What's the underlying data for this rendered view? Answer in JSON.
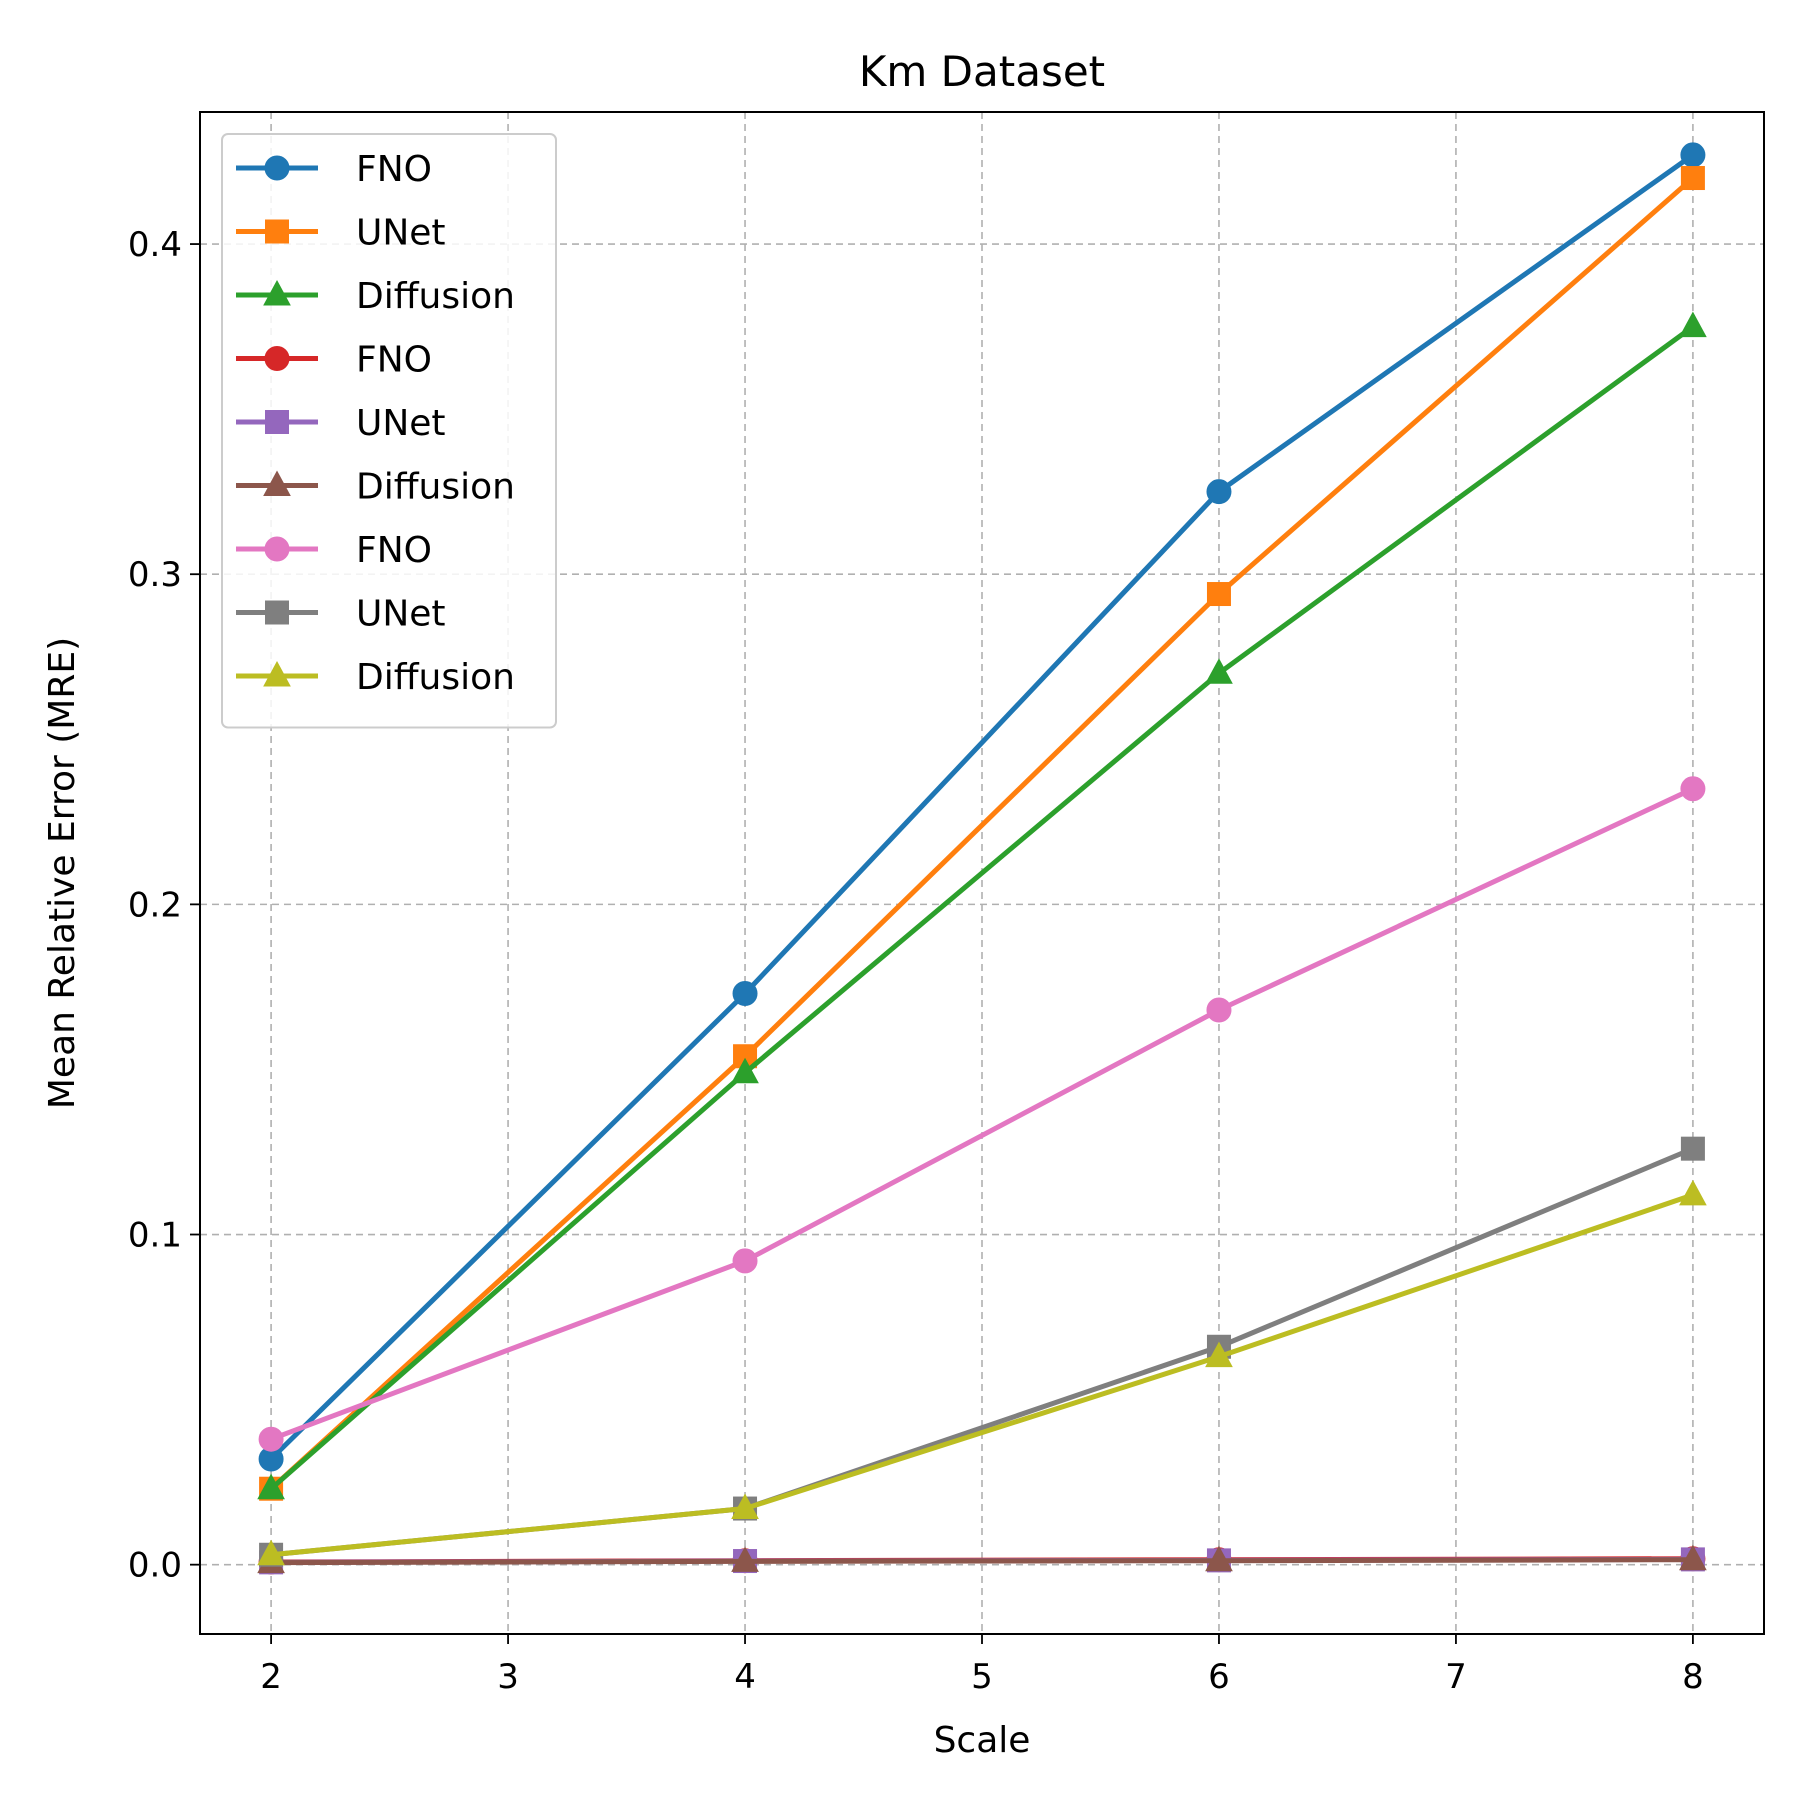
{
  "chart_data": {
    "type": "line",
    "title": "Km Dataset",
    "xlabel": "Scale",
    "ylabel": "Mean Relative Error (MRE)",
    "x": [
      2,
      4,
      6,
      8
    ],
    "xlim": [
      1.7,
      8.3
    ],
    "ylim": [
      -0.021,
      0.44
    ],
    "xticks": [
      2,
      3,
      4,
      5,
      6,
      7,
      8
    ],
    "xtick_labels": [
      "2",
      "3",
      "4",
      "5",
      "6",
      "7",
      "8"
    ],
    "yticks": [
      0.0,
      0.1,
      0.2,
      0.3,
      0.4
    ],
    "ytick_labels": [
      "0.0",
      "0.1",
      "0.2",
      "0.3",
      "0.4"
    ],
    "grid": true,
    "legend_position": "upper-left",
    "series": [
      {
        "name": "FNO",
        "color": "#1f77b4",
        "marker": "circle",
        "values": [
          0.032,
          0.173,
          0.325,
          0.427
        ]
      },
      {
        "name": "UNet",
        "color": "#ff7f0e",
        "marker": "square",
        "values": [
          0.023,
          0.154,
          0.294,
          0.42
        ]
      },
      {
        "name": "Diffusion",
        "color": "#2ca02c",
        "marker": "triangle",
        "values": [
          0.023,
          0.149,
          0.27,
          0.375
        ]
      },
      {
        "name": "FNO",
        "color": "#d62728",
        "marker": "circle",
        "values": [
          0.0008,
          0.0012,
          0.0015,
          0.0018
        ]
      },
      {
        "name": "UNet",
        "color": "#9467bd",
        "marker": "square",
        "values": [
          0.0007,
          0.0011,
          0.0013,
          0.0016
        ]
      },
      {
        "name": "Diffusion",
        "color": "#8c564b",
        "marker": "triangle",
        "values": [
          0.0006,
          0.001,
          0.0012,
          0.0015
        ]
      },
      {
        "name": "FNO",
        "color": "#e377c2",
        "marker": "circle",
        "values": [
          0.038,
          0.092,
          0.168,
          0.235
        ]
      },
      {
        "name": "UNet",
        "color": "#7f7f7f",
        "marker": "square",
        "values": [
          0.003,
          0.017,
          0.066,
          0.126
        ]
      },
      {
        "name": "Diffusion",
        "color": "#bcbd22",
        "marker": "triangle",
        "values": [
          0.003,
          0.017,
          0.063,
          0.112
        ]
      }
    ]
  }
}
